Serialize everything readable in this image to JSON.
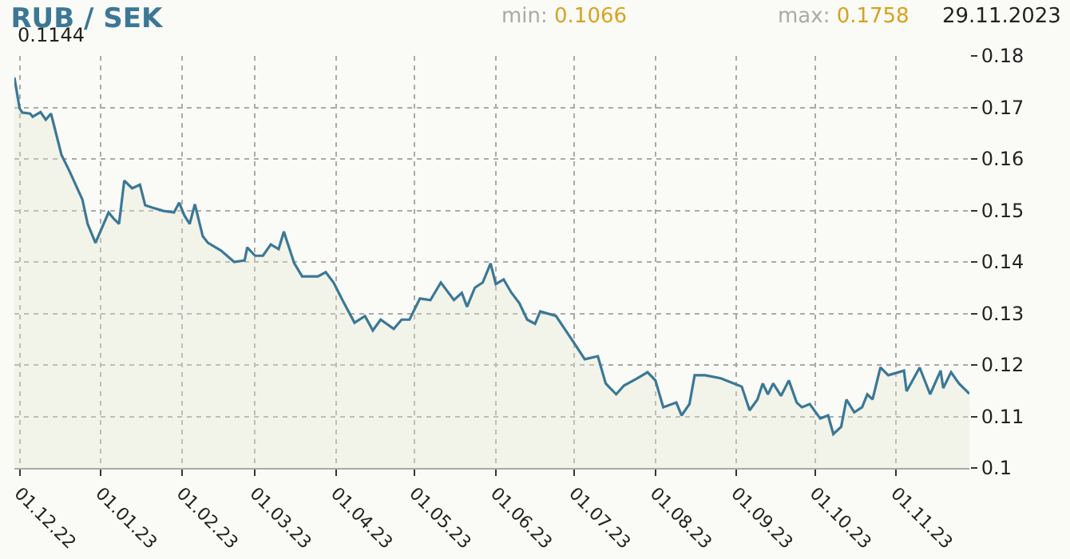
{
  "chart_data": {
    "type": "area",
    "title": "RUB / SEK",
    "annotations": [
      "min: 0.1066",
      "max: 0.1758",
      "29.11.2023",
      "0.1144"
    ],
    "x": [
      "2022-11-29",
      "2022-12-01",
      "2022-12-02",
      "2022-12-05",
      "2022-12-06",
      "2022-12-09",
      "2022-12-11",
      "2022-12-13",
      "2022-12-17",
      "2022-12-20",
      "2022-12-25",
      "2022-12-27",
      "2022-12-30",
      "2023-01-04",
      "2023-01-06",
      "2023-01-08",
      "2023-01-10",
      "2023-01-13",
      "2023-01-16",
      "2023-01-18",
      "2023-01-21",
      "2023-01-25",
      "2023-01-29",
      "2023-01-31",
      "2023-02-02",
      "2023-02-04",
      "2023-02-06",
      "2023-02-09",
      "2023-02-11",
      "2023-02-16",
      "2023-02-21",
      "2023-02-25",
      "2023-02-26",
      "2023-03-01",
      "2023-03-04",
      "2023-03-07",
      "2023-03-10",
      "2023-03-12",
      "2023-03-13",
      "2023-03-16",
      "2023-03-19",
      "2023-03-25",
      "2023-03-28",
      "2023-03-31",
      "2023-04-02",
      "2023-04-04",
      "2023-04-08",
      "2023-04-12",
      "2023-04-15",
      "2023-04-18",
      "2023-04-23",
      "2023-04-26",
      "2023-04-29",
      "2023-05-03",
      "2023-05-07",
      "2023-05-11",
      "2023-05-16",
      "2023-05-19",
      "2023-05-21",
      "2023-05-24",
      "2023-05-27",
      "2023-05-30",
      "2023-06-01",
      "2023-06-04",
      "2023-06-07",
      "2023-06-10",
      "2023-06-13",
      "2023-06-16",
      "2023-06-18",
      "2023-06-24",
      "2023-07-01",
      "2023-07-05",
      "2023-07-10",
      "2023-07-13",
      "2023-07-17",
      "2023-07-20",
      "2023-07-25",
      "2023-07-29",
      "2023-08-01",
      "2023-08-04",
      "2023-08-09",
      "2023-08-11",
      "2023-08-14",
      "2023-08-16",
      "2023-08-20",
      "2023-08-26",
      "2023-08-31",
      "2023-09-03",
      "2023-09-06",
      "2023-09-09",
      "2023-09-11",
      "2023-09-13",
      "2023-09-15",
      "2023-09-18",
      "2023-09-21",
      "2023-09-24",
      "2023-09-26",
      "2023-09-29",
      "2023-10-03",
      "2023-10-06",
      "2023-10-08",
      "2023-10-11",
      "2023-10-13",
      "2023-10-16",
      "2023-10-19",
      "2023-10-21",
      "2023-10-23",
      "2023-10-26",
      "2023-10-29",
      "2023-11-04",
      "2023-11-05",
      "2023-11-10",
      "2023-11-14",
      "2023-11-18",
      "2023-11-19",
      "2023-11-22",
      "2023-11-25",
      "2023-11-29"
    ],
    "series": [
      {
        "color": "#3b7896",
        "values": [
          0.1758,
          0.1698,
          0.169,
          0.1688,
          0.1682,
          0.1691,
          0.1676,
          0.1688,
          0.1608,
          0.1577,
          0.1521,
          0.1474,
          0.1437,
          0.1496,
          0.1484,
          0.1474,
          0.1558,
          0.1543,
          0.155,
          0.151,
          0.1505,
          0.1499,
          0.1496,
          0.1515,
          0.149,
          0.1474,
          0.1512,
          0.145,
          0.1437,
          0.1422,
          0.14,
          0.1403,
          0.1428,
          0.1412,
          0.1412,
          0.1434,
          0.1425,
          0.1459,
          0.1443,
          0.1397,
          0.1372,
          0.1372,
          0.138,
          0.136,
          0.134,
          0.132,
          0.1282,
          0.1295,
          0.1267,
          0.1288,
          0.127,
          0.1288,
          0.1288,
          0.1329,
          0.1326,
          0.136,
          0.1326,
          0.134,
          0.1313,
          0.135,
          0.136,
          0.1397,
          0.1357,
          0.1366,
          0.134,
          0.132,
          0.1288,
          0.128,
          0.1304,
          0.1295,
          0.1242,
          0.1211,
          0.1217,
          0.1164,
          0.1143,
          0.116,
          0.1174,
          0.1186,
          0.117,
          0.1118,
          0.1127,
          0.1102,
          0.1124,
          0.118,
          0.118,
          0.1174,
          0.1164,
          0.1158,
          0.1112,
          0.1133,
          0.1164,
          0.1143,
          0.1164,
          0.114,
          0.117,
          0.1127,
          0.1118,
          0.1124,
          0.1096,
          0.1102,
          0.1066,
          0.108,
          0.1133,
          0.1108,
          0.1118,
          0.1143,
          0.1133,
          0.1195,
          0.118,
          0.1189,
          0.1149,
          0.1195,
          0.1143,
          0.1189,
          0.1155,
          0.1186,
          0.1164,
          0.1144
        ]
      }
    ],
    "xlim": [
      "2022-11-29",
      "2023-11-29"
    ],
    "xticks": [
      {
        "value": "2022-12-01",
        "label": "01.12.22"
      },
      {
        "value": "2023-01-01",
        "label": "01.01.23"
      },
      {
        "value": "2023-02-01",
        "label": "01.02.23"
      },
      {
        "value": "2023-03-01",
        "label": "01.03.23"
      },
      {
        "value": "2023-04-01",
        "label": "01.04.23"
      },
      {
        "value": "2023-05-01",
        "label": "01.05.23"
      },
      {
        "value": "2023-06-01",
        "label": "01.06.23"
      },
      {
        "value": "2023-07-01",
        "label": "01.07.23"
      },
      {
        "value": "2023-08-01",
        "label": "01.08.23"
      },
      {
        "value": "2023-09-01",
        "label": "01.09.23"
      },
      {
        "value": "2023-10-01",
        "label": "01.10.23"
      },
      {
        "value": "2023-11-01",
        "label": "01.11.23"
      }
    ],
    "ylim": [
      0.1,
      0.18
    ],
    "yticks": [
      0.1,
      0.11,
      0.12,
      0.13,
      0.14,
      0.15,
      0.16,
      0.17,
      0.18
    ],
    "grid": true,
    "line_style": "solid",
    "marker": "none"
  }
}
